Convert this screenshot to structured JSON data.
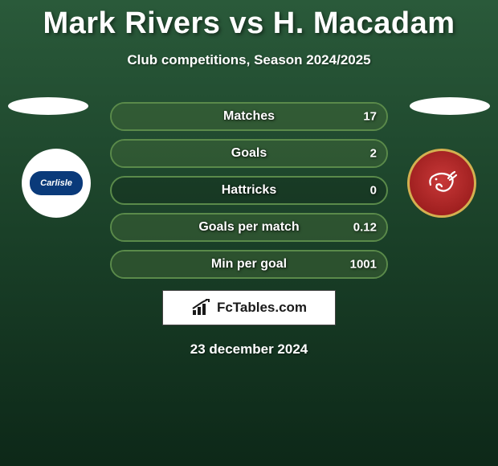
{
  "header": {
    "title": "Mark Rivers vs H. Macadam",
    "subtitle": "Club competitions, Season 2024/2025"
  },
  "player_left": {
    "badge_text": "Carlisle",
    "badge_bg": "#ffffff",
    "badge_inner_bg": "#0a3a7a"
  },
  "player_right": {
    "badge_bg": "#b02828",
    "badge_ring": "#d4b050",
    "shrimp_color": "#ffffff"
  },
  "stats": [
    {
      "label": "Matches",
      "left_val": "",
      "right_val": "17",
      "left_fill_pct": 0,
      "right_fill_pct": 100
    },
    {
      "label": "Goals",
      "left_val": "",
      "right_val": "2",
      "left_fill_pct": 0,
      "right_fill_pct": 100
    },
    {
      "label": "Hattricks",
      "left_val": "",
      "right_val": "0",
      "left_fill_pct": 0,
      "right_fill_pct": 0
    },
    {
      "label": "Goals per match",
      "left_val": "",
      "right_val": "0.12",
      "left_fill_pct": 0,
      "right_fill_pct": 100
    },
    {
      "label": "Min per goal",
      "left_val": "",
      "right_val": "1001",
      "left_fill_pct": 0,
      "right_fill_pct": 100
    }
  ],
  "brand": {
    "text": "FcTables.com"
  },
  "footer": {
    "date": "23 december 2024"
  },
  "style": {
    "row_border_color": "#5a8a4a",
    "row_fill_color": "rgba(90,138,74,0.35)",
    "text_color": "#ffffff",
    "title_fontsize": 38,
    "subtitle_fontsize": 17,
    "label_fontsize": 16
  }
}
